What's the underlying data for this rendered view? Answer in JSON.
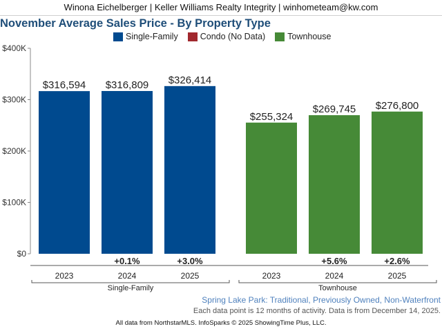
{
  "header": {
    "contact": "Winona Eichelberger | Keller Williams Realty Integrity | winhometeam@kw.com"
  },
  "chart_data": {
    "type": "bar",
    "title": "November Average Sales Price - By Property Type",
    "ylim": [
      0,
      400000
    ],
    "yticks": [
      {
        "value": 0,
        "label": "$0"
      },
      {
        "value": 100000,
        "label": "$100K"
      },
      {
        "value": 200000,
        "label": "$200K"
      },
      {
        "value": 300000,
        "label": "$300K"
      },
      {
        "value": 400000,
        "label": "$400K"
      }
    ],
    "grid": false,
    "legend_position": "top",
    "legend": [
      {
        "name": "Single-Family",
        "color": "#004a8f"
      },
      {
        "name": "Condo (No Data)",
        "color": "#a1282e"
      },
      {
        "name": "Townhouse",
        "color": "#468a37"
      }
    ],
    "groups": [
      {
        "name": "Single-Family",
        "color": "#004a8f",
        "bars": [
          {
            "year": "2023",
            "value": 316594,
            "label": "$316,594",
            "change": ""
          },
          {
            "year": "2024",
            "value": 316809,
            "label": "$316,809",
            "change": "+0.1%"
          },
          {
            "year": "2025",
            "value": 326414,
            "label": "$326,414",
            "change": "+3.0%"
          }
        ]
      },
      {
        "name": "Townhouse",
        "color": "#468a37",
        "bars": [
          {
            "year": "2023",
            "value": 255324,
            "label": "$255,324",
            "change": ""
          },
          {
            "year": "2024",
            "value": 269745,
            "label": "$269,745",
            "change": "+5.6%"
          },
          {
            "year": "2025",
            "value": 276800,
            "label": "$276,800",
            "change": "+2.6%"
          }
        ]
      }
    ]
  },
  "footer": {
    "subtitle": "Spring Lake Park: Traditional, Previously Owned, Non-Waterfront",
    "note": "Each data point is 12 months of activity. Data is from December 14, 2025.",
    "source": "All data from NorthstarMLS. InfoSparks © 2025 ShowingTime Plus, LLC."
  }
}
